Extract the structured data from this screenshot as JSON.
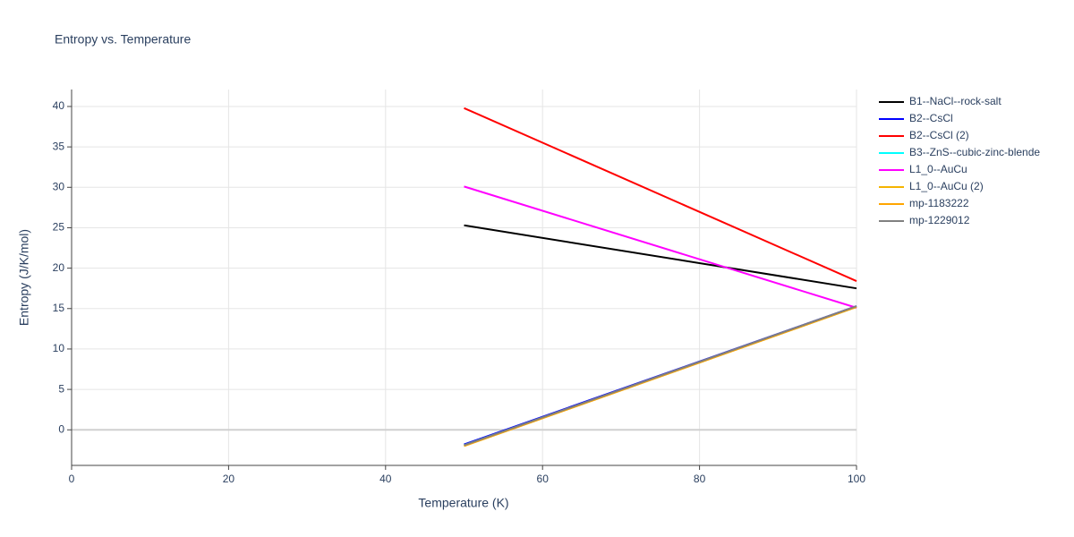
{
  "chart_data": {
    "type": "line",
    "title": "Entropy vs. Temperature",
    "x_label": "Temperature (K)",
    "y_label": "Entropy (J/K/mol)",
    "x": [
      50,
      100
    ],
    "series": [
      {
        "name": "B1--NaCl--rock-salt",
        "color": "#000000",
        "values": [
          25.3,
          17.5
        ]
      },
      {
        "name": "B2--CsCl",
        "color": "#0000ff",
        "values": [
          -1.8,
          15.3
        ]
      },
      {
        "name": "B2--CsCl (2)",
        "color": "#ff0000",
        "values": [
          39.8,
          18.4
        ]
      },
      {
        "name": "B3--ZnS--cubic-zinc-blende",
        "color": "#00ffff",
        "values": [
          -1.9,
          15.2
        ]
      },
      {
        "name": "L1_0--AuCu",
        "color": "#ff00ff",
        "values": [
          30.1,
          15.1
        ]
      },
      {
        "name": "L1_0--AuCu (2)",
        "color": "#f5b400",
        "values": [
          -2.0,
          15.2
        ]
      },
      {
        "name": "mp-1183222",
        "color": "#ffa500",
        "values": [
          -2.0,
          15.2
        ]
      },
      {
        "name": "mp-1229012",
        "color": "#808080",
        "values": [
          -1.9,
          15.3
        ]
      }
    ],
    "xlim": [
      0,
      100
    ],
    "xticks": [
      0,
      20,
      40,
      60,
      80,
      100
    ],
    "ylim": [
      -4.4,
      42.1
    ],
    "yticks": [
      0,
      5,
      10,
      15,
      20,
      25,
      30,
      35,
      40
    ],
    "grid": true,
    "zeroline": true,
    "legend": "right"
  }
}
